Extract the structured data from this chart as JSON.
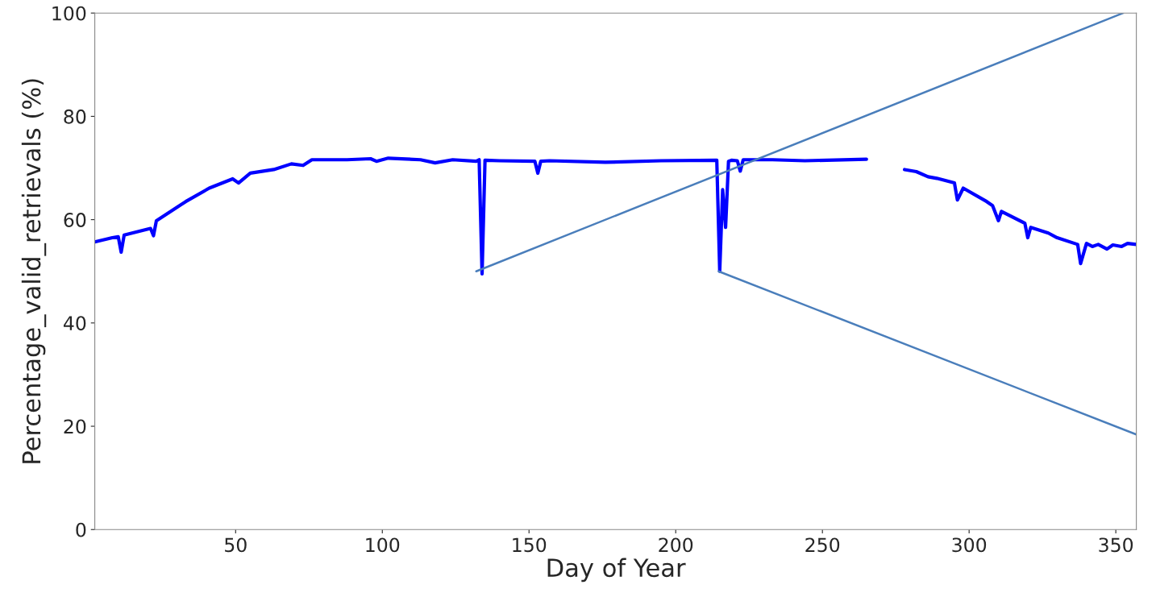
{
  "chart_data": {
    "type": "line",
    "xlabel": "Day of Year",
    "ylabel": "Percentage_valid_retrievals (%)",
    "xlim": [
      2,
      357
    ],
    "ylim": [
      0,
      100
    ],
    "xticks": [
      50,
      100,
      150,
      200,
      250,
      300,
      350
    ],
    "yticks": [
      0,
      20,
      40,
      60,
      80,
      100
    ],
    "grid": false,
    "series": [
      {
        "color": "#0000ff",
        "x": [
          2,
          8,
          10,
          11,
          12,
          21,
          22,
          23,
          33,
          41,
          49,
          51,
          55,
          63,
          69,
          73,
          76,
          88,
          96,
          98,
          102,
          113,
          118,
          124,
          132,
          133,
          134,
          135,
          140,
          152,
          153,
          154,
          157,
          176,
          195,
          214,
          215,
          216,
          217,
          218,
          219,
          221,
          222,
          223,
          233,
          244,
          265,
          270,
          278,
          282,
          286,
          289,
          295,
          296,
          298,
          306,
          308,
          310,
          311,
          319,
          320,
          321,
          327,
          330,
          337,
          338,
          340,
          342,
          344,
          347,
          349,
          352,
          354,
          357
        ],
        "values": [
          55.7,
          56.5,
          56.7,
          53.7,
          57,
          58.3,
          56.9,
          59.8,
          63.5,
          66.1,
          67.9,
          67.1,
          69,
          69.7,
          70.8,
          70.5,
          71.6,
          71.6,
          71.8,
          71.3,
          71.9,
          71.6,
          71,
          71.6,
          71.3,
          71.6,
          49.5,
          71.5,
          71.4,
          71.3,
          69,
          71.3,
          71.4,
          71.1,
          71.4,
          71.5,
          50,
          65.8,
          58.5,
          71.3,
          71.5,
          71.4,
          69.4,
          71.6,
          71.6,
          71.4,
          71.7,
          null,
          69.7,
          69.3,
          68.3,
          68,
          67.1,
          63.8,
          66.1,
          63.5,
          62.7,
          59.8,
          61.6,
          59.3,
          56.5,
          58.5,
          57.4,
          56.5,
          55.2,
          51.5,
          55.4,
          54.8,
          55.2,
          54.3,
          55.1,
          54.8,
          55.4,
          55.2
        ]
      },
      {
        "color": "#4a7ebb",
        "x": [
          132,
          352.5
        ],
        "values": [
          50,
          100
        ]
      },
      {
        "color": "#4a7ebb",
        "x": [
          214.6,
          357
        ],
        "values": [
          50,
          18.4
        ]
      }
    ]
  }
}
